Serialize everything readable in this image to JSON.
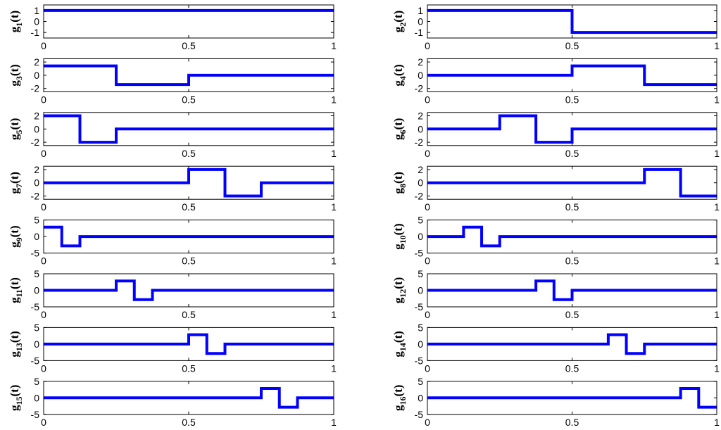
{
  "chart_data": [
    {
      "type": "line",
      "ylabel": [
        "g",
        "1",
        "(t)"
      ],
      "x": [
        0,
        1
      ],
      "values": [
        1,
        1
      ],
      "color": "#0000ff",
      "xlim": [
        0,
        1
      ],
      "xticks": [
        0,
        0.5,
        1
      ],
      "ylim": [
        -1.5,
        1.5
      ],
      "yticks": [
        -1,
        0,
        1
      ]
    },
    {
      "type": "line",
      "ylabel": [
        "g",
        "2",
        "(t)"
      ],
      "x": [
        0,
        0.5,
        0.5,
        1
      ],
      "values": [
        1,
        1,
        -1,
        -1
      ],
      "color": "#0000ff",
      "xlim": [
        0,
        1
      ],
      "xticks": [
        0,
        0.5,
        1
      ],
      "ylim": [
        -1.5,
        1.5
      ],
      "yticks": [
        -1,
        0,
        1
      ]
    },
    {
      "type": "line",
      "ylabel": [
        "g",
        "3",
        "(t)"
      ],
      "x": [
        0,
        0.25,
        0.25,
        0.5,
        0.5,
        1
      ],
      "values": [
        1.41,
        1.41,
        -1.41,
        -1.41,
        0,
        0
      ],
      "color": "#0000ff",
      "xlim": [
        0,
        1
      ],
      "xticks": [
        0,
        0.5,
        1
      ],
      "ylim": [
        -2.5,
        2.5
      ],
      "yticks": [
        -2,
        0,
        2
      ]
    },
    {
      "type": "line",
      "ylabel": [
        "g",
        "4",
        "(t)"
      ],
      "x": [
        0,
        0.5,
        0.5,
        0.75,
        0.75,
        1
      ],
      "values": [
        0,
        0,
        1.41,
        1.41,
        -1.41,
        -1.41
      ],
      "color": "#0000ff",
      "xlim": [
        0,
        1
      ],
      "xticks": [
        0,
        0.5,
        1
      ],
      "ylim": [
        -2.5,
        2.5
      ],
      "yticks": [
        -2,
        0,
        2
      ]
    },
    {
      "type": "line",
      "ylabel": [
        "g",
        "5",
        "(t)"
      ],
      "x": [
        0,
        0.125,
        0.125,
        0.25,
        0.25,
        1
      ],
      "values": [
        2,
        2,
        -2,
        -2,
        0,
        0
      ],
      "color": "#0000ff",
      "xlim": [
        0,
        1
      ],
      "xticks": [
        0,
        0.5,
        1
      ],
      "ylim": [
        -2.5,
        2.5
      ],
      "yticks": [
        -2,
        0,
        2
      ]
    },
    {
      "type": "line",
      "ylabel": [
        "g",
        "6",
        "(t)"
      ],
      "x": [
        0,
        0.25,
        0.25,
        0.375,
        0.375,
        0.5,
        0.5,
        1
      ],
      "values": [
        0,
        0,
        2,
        2,
        -2,
        -2,
        0,
        0
      ],
      "color": "#0000ff",
      "xlim": [
        0,
        1
      ],
      "xticks": [
        0,
        0.5,
        1
      ],
      "ylim": [
        -2.5,
        2.5
      ],
      "yticks": [
        -2,
        0,
        2
      ]
    },
    {
      "type": "line",
      "ylabel": [
        "g",
        "7",
        "(t)"
      ],
      "x": [
        0,
        0.5,
        0.5,
        0.625,
        0.625,
        0.75,
        0.75,
        1
      ],
      "values": [
        0,
        0,
        2,
        2,
        -2,
        -2,
        0,
        0
      ],
      "color": "#0000ff",
      "xlim": [
        0,
        1
      ],
      "xticks": [
        0,
        0.5,
        1
      ],
      "ylim": [
        -2.5,
        2.5
      ],
      "yticks": [
        -2,
        0,
        2
      ]
    },
    {
      "type": "line",
      "ylabel": [
        "g",
        "8",
        "(t)"
      ],
      "x": [
        0,
        0.75,
        0.75,
        0.875,
        0.875,
        1
      ],
      "values": [
        0,
        0,
        2,
        2,
        -2,
        -2
      ],
      "color": "#0000ff",
      "xlim": [
        0,
        1
      ],
      "xticks": [
        0,
        0.5,
        1
      ],
      "ylim": [
        -2.5,
        2.5
      ],
      "yticks": [
        -2,
        0,
        2
      ]
    },
    {
      "type": "line",
      "ylabel": [
        "g",
        "9",
        "(t)"
      ],
      "x": [
        0,
        0.0625,
        0.0625,
        0.125,
        0.125,
        1
      ],
      "values": [
        2.83,
        2.83,
        -2.83,
        -2.83,
        0,
        0
      ],
      "color": "#0000ff",
      "xlim": [
        0,
        1
      ],
      "xticks": [
        0,
        0.5,
        1
      ],
      "ylim": [
        -5,
        5
      ],
      "yticks": [
        -5,
        0,
        5
      ]
    },
    {
      "type": "line",
      "ylabel": [
        "g",
        "10",
        "(t)"
      ],
      "x": [
        0,
        0.125,
        0.125,
        0.1875,
        0.1875,
        0.25,
        0.25,
        1
      ],
      "values": [
        0,
        0,
        2.83,
        2.83,
        -2.83,
        -2.83,
        0,
        0
      ],
      "color": "#0000ff",
      "xlim": [
        0,
        1
      ],
      "xticks": [
        0,
        0.5,
        1
      ],
      "ylim": [
        -5,
        5
      ],
      "yticks": [
        -5,
        0,
        5
      ]
    },
    {
      "type": "line",
      "ylabel": [
        "g",
        "11",
        "(t)"
      ],
      "x": [
        0,
        0.25,
        0.25,
        0.3125,
        0.3125,
        0.375,
        0.375,
        1
      ],
      "values": [
        0,
        0,
        2.83,
        2.83,
        -2.83,
        -2.83,
        0,
        0
      ],
      "color": "#0000ff",
      "xlim": [
        0,
        1
      ],
      "xticks": [
        0,
        0.5,
        1
      ],
      "ylim": [
        -5,
        5
      ],
      "yticks": [
        -5,
        0,
        5
      ]
    },
    {
      "type": "line",
      "ylabel": [
        "g",
        "12",
        "(t)"
      ],
      "x": [
        0,
        0.375,
        0.375,
        0.4375,
        0.4375,
        0.5,
        0.5,
        1
      ],
      "values": [
        0,
        0,
        2.83,
        2.83,
        -2.83,
        -2.83,
        0,
        0
      ],
      "color": "#0000ff",
      "xlim": [
        0,
        1
      ],
      "xticks": [
        0,
        0.5,
        1
      ],
      "ylim": [
        -5,
        5
      ],
      "yticks": [
        -5,
        0,
        5
      ]
    },
    {
      "type": "line",
      "ylabel": [
        "g",
        "13",
        "(t)"
      ],
      "x": [
        0,
        0.5,
        0.5,
        0.5625,
        0.5625,
        0.625,
        0.625,
        1
      ],
      "values": [
        0,
        0,
        2.83,
        2.83,
        -2.83,
        -2.83,
        0,
        0
      ],
      "color": "#0000ff",
      "xlim": [
        0,
        1
      ],
      "xticks": [
        0,
        0.5,
        1
      ],
      "ylim": [
        -5,
        5
      ],
      "yticks": [
        -5,
        0,
        5
      ]
    },
    {
      "type": "line",
      "ylabel": [
        "g",
        "14",
        "(t)"
      ],
      "x": [
        0,
        0.625,
        0.625,
        0.6875,
        0.6875,
        0.75,
        0.75,
        1
      ],
      "values": [
        0,
        0,
        2.83,
        2.83,
        -2.83,
        -2.83,
        0,
        0
      ],
      "color": "#0000ff",
      "xlim": [
        0,
        1
      ],
      "xticks": [
        0,
        0.5,
        1
      ],
      "ylim": [
        -5,
        5
      ],
      "yticks": [
        -5,
        0,
        5
      ]
    },
    {
      "type": "line",
      "ylabel": [
        "g",
        "15",
        "(t)"
      ],
      "x": [
        0,
        0.75,
        0.75,
        0.8125,
        0.8125,
        0.875,
        0.875,
        1
      ],
      "values": [
        0,
        0,
        2.83,
        2.83,
        -2.83,
        -2.83,
        0,
        0
      ],
      "color": "#0000ff",
      "xlim": [
        0,
        1
      ],
      "xticks": [
        0,
        0.5,
        1
      ],
      "ylim": [
        -5,
        5
      ],
      "yticks": [
        -5,
        0,
        5
      ]
    },
    {
      "type": "line",
      "ylabel": [
        "g",
        "16",
        "(t)"
      ],
      "x": [
        0,
        0.875,
        0.875,
        0.9375,
        0.9375,
        1
      ],
      "values": [
        0,
        0,
        2.83,
        2.83,
        -2.83,
        -2.83
      ],
      "color": "#0000ff",
      "xlim": [
        0,
        1
      ],
      "xticks": [
        0,
        0.5,
        1
      ],
      "ylim": [
        -5,
        5
      ],
      "yticks": [
        -5,
        0,
        5
      ]
    }
  ]
}
